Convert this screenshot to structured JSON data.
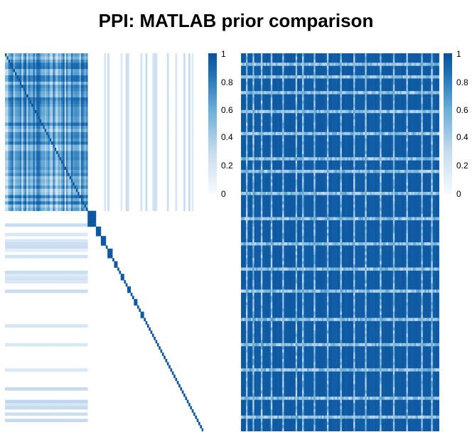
{
  "title": "PPI: MATLAB prior comparison",
  "chart_data": [
    {
      "type": "heatmap",
      "title": "PPI: MATLAB prior comparison",
      "panel": "left",
      "value_range": [
        0,
        1
      ],
      "colorbar": {
        "ticks": [
          "0",
          "0.2",
          "0.4",
          "0.6",
          "0.8",
          "1"
        ],
        "placement": "right"
      },
      "colormap": [
        "#f7fbff",
        "#c6dbef",
        "#6baed6",
        "#2171b5",
        "#08519c"
      ],
      "grid": false,
      "structure": {
        "n_rows": 120,
        "n_cols": 120,
        "dense_block": [
          0,
          50
        ],
        "sub_block": [
          50,
          55
        ],
        "tail_blocks": [
          [
            55,
            58
          ],
          [
            58,
            61
          ],
          [
            62,
            65
          ],
          [
            66,
            68
          ],
          [
            70,
            72
          ],
          [
            74,
            76
          ],
          [
            78,
            80
          ],
          [
            82,
            84
          ]
        ],
        "diagonal_value": 0.95,
        "dense_block_mean": 0.55
      }
    },
    {
      "type": "heatmap",
      "panel": "right",
      "value_range": [
        0,
        1
      ],
      "colorbar": {
        "ticks": [
          "0",
          "0.2",
          "0.4",
          "0.6",
          "0.8",
          "1"
        ],
        "placement": "right"
      },
      "colormap": [
        "#f7fbff",
        "#c6dbef",
        "#6baed6",
        "#2171b5",
        "#08519c"
      ],
      "grid": false,
      "structure": {
        "n_rows": 120,
        "n_cols": 120,
        "background_value": 0.92,
        "light_bands": [
          3,
          7,
          12,
          18,
          25,
          33,
          37,
          44,
          52,
          60,
          68,
          75,
          84,
          92,
          100,
          109,
          115
        ],
        "light_band_value": 0.25
      }
    }
  ]
}
